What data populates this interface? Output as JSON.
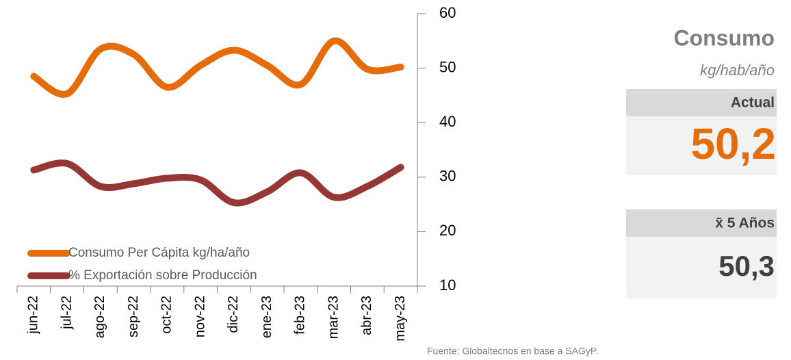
{
  "chart_data": {
    "type": "line",
    "categories": [
      "jun-22",
      "jul-22",
      "ago-22",
      "sep-22",
      "oct-22",
      "nov-22",
      "dic-22",
      "ene-23",
      "feb-23",
      "mar-23",
      "abr-23",
      "may-23"
    ],
    "series": [
      {
        "name": "Consumo Per Cápita kg/ha/año",
        "color": "#e46c0a",
        "values": [
          48.5,
          45.3,
          53.5,
          52.5,
          46.5,
          50.5,
          53.3,
          50.5,
          47,
          55,
          49.8,
          50.2
        ]
      },
      {
        "name": "% Exportación sobre Producción",
        "color": "#953735",
        "values": [
          31.3,
          32.5,
          28.3,
          28.8,
          29.8,
          29.5,
          25.3,
          27.3,
          30.8,
          26.3,
          28.3,
          31.8
        ]
      }
    ],
    "ylim": [
      10,
      60
    ],
    "yticks": [
      10,
      20,
      30,
      40,
      50,
      60
    ],
    "legend": "lower-left"
  },
  "panel": {
    "title": "Consumo",
    "unit": "kg/hab/año",
    "current_label": "Actual",
    "current_value": "50,2",
    "average_label": "x̄ 5 Años",
    "average_value": "50,3"
  },
  "source": "Fuente: Globaltecnos en base a SAGyP."
}
